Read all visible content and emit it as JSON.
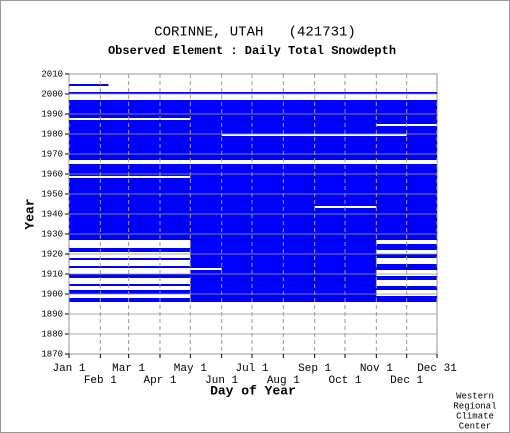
{
  "chart_data": {
    "type": "coverage",
    "title": "CORINNE, UTAH   (421731)",
    "subtitle": "Observed Element : Daily Total Snowdepth",
    "xlabel": "Day of Year",
    "ylabel": "Year",
    "footer": [
      "Western",
      "Regional",
      "Climate",
      "Center"
    ],
    "color": "#0000ff",
    "gap_color": "#ffffff",
    "grid": true,
    "xlim": [
      1,
      365
    ],
    "ylim": [
      1870,
      2010
    ],
    "xticks": [
      {
        "value": 1,
        "label": "Jan 1"
      },
      {
        "value": 32,
        "label": "Feb 1"
      },
      {
        "value": 60,
        "label": "Mar 1"
      },
      {
        "value": 91,
        "label": "Apr 1"
      },
      {
        "value": 121,
        "label": "May 1"
      },
      {
        "value": 152,
        "label": "Jun 1"
      },
      {
        "value": 182,
        "label": "Jul 1"
      },
      {
        "value": 213,
        "label": "Aug 1"
      },
      {
        "value": 244,
        "label": "Sep 1"
      },
      {
        "value": 274,
        "label": "Oct 1"
      },
      {
        "value": 305,
        "label": "Nov 1"
      },
      {
        "value": 335,
        "label": "Dec 1"
      },
      {
        "value": 365,
        "label": "Dec 31"
      }
    ],
    "yticks": [
      1870,
      1880,
      1890,
      1900,
      1910,
      1920,
      1930,
      1940,
      1950,
      1960,
      1970,
      1980,
      1990,
      2000,
      2010
    ],
    "blocks": [
      {
        "days": [
          1,
          365
        ],
        "years": [
          1927,
          1997
        ]
      },
      {
        "days": [
          121,
          305
        ],
        "years": [
          1896,
          1927
        ]
      },
      {
        "days": [
          1,
          121
        ],
        "years": [
          1896,
          1898
        ]
      },
      {
        "days": [
          1,
          121
        ],
        "years": [
          1900,
          1902
        ]
      },
      {
        "days": [
          1,
          121
        ],
        "years": [
          1904,
          1905
        ]
      },
      {
        "days": [
          1,
          121
        ],
        "years": [
          1908,
          1910
        ]
      },
      {
        "days": [
          1,
          121
        ],
        "years": [
          1913,
          1914
        ]
      },
      {
        "days": [
          1,
          121
        ],
        "years": [
          1917,
          1918
        ]
      },
      {
        "days": [
          1,
          121
        ],
        "years": [
          1921,
          1923
        ]
      },
      {
        "days": [
          305,
          365
        ],
        "years": [
          1896,
          1899
        ]
      },
      {
        "days": [
          305,
          365
        ],
        "years": [
          1902,
          1904
        ]
      },
      {
        "days": [
          305,
          365
        ],
        "years": [
          1907,
          1909
        ]
      },
      {
        "days": [
          305,
          365
        ],
        "years": [
          1912,
          1915
        ]
      },
      {
        "days": [
          305,
          365
        ],
        "years": [
          1918,
          1920
        ]
      },
      {
        "days": [
          305,
          365
        ],
        "years": [
          1922,
          1925
        ]
      },
      {
        "days": [
          1,
          365
        ],
        "years": [
          2000,
          2001
        ]
      },
      {
        "days": [
          1,
          40
        ],
        "years": [
          2004,
          2005
        ]
      }
    ],
    "gaps": [
      {
        "days": [
          1,
          365
        ],
        "years": [
          1965,
          1967
        ]
      },
      {
        "days": [
          1,
          121
        ],
        "years": [
          1987,
          1988
        ]
      },
      {
        "days": [
          305,
          365
        ],
        "years": [
          1984,
          1985
        ]
      },
      {
        "days": [
          121,
          152
        ],
        "years": [
          1912,
          1913
        ]
      },
      {
        "days": [
          1,
          121
        ],
        "years": [
          1958,
          1959
        ]
      },
      {
        "days": [
          244,
          305
        ],
        "years": [
          1943,
          1944
        ]
      },
      {
        "days": [
          152,
          335
        ],
        "years": [
          1979,
          1980
        ]
      }
    ]
  }
}
